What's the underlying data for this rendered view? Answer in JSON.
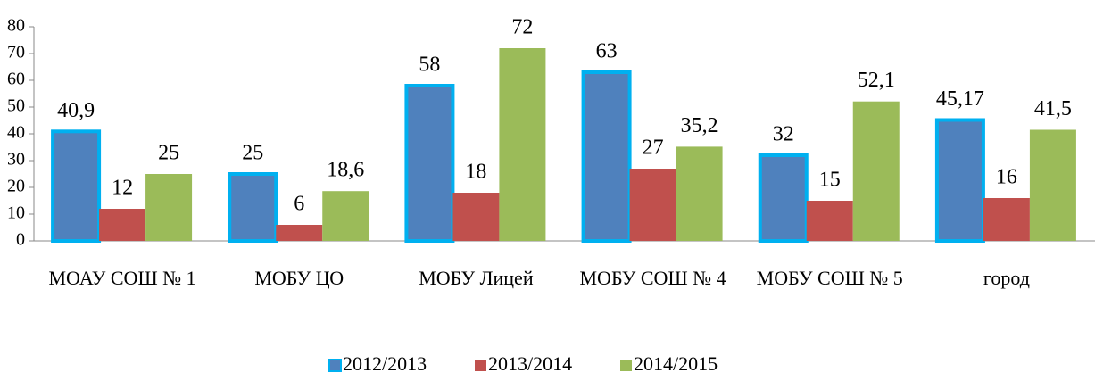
{
  "chart_data": {
    "type": "bar",
    "categories": [
      "МОАУ СОШ № 1",
      "МОБУ ЦО",
      "МОБУ Лицей",
      "МОБУ СОШ № 4",
      "МОБУ СОШ № 5",
      "город"
    ],
    "series": [
      {
        "name": "2012/2013",
        "color": "#4f81bd",
        "outline": "#00b0f0",
        "values": [
          40.9,
          25,
          58,
          63,
          32,
          45.17
        ],
        "value_labels": [
          "40,9",
          "25",
          "58",
          "63",
          "32",
          "45,17"
        ]
      },
      {
        "name": "2013/2014",
        "color": "#c0504d",
        "values": [
          12,
          6,
          18,
          27,
          15,
          16
        ],
        "value_labels": [
          "12",
          "6",
          "18",
          "27",
          "15",
          "16"
        ]
      },
      {
        "name": "2014/2015",
        "color": "#9bbb59",
        "values": [
          25,
          18.6,
          72,
          35.2,
          52.1,
          41.5
        ],
        "value_labels": [
          "25",
          "18,6",
          "72",
          "35,2",
          "52,1",
          "41,5"
        ]
      }
    ],
    "ylim": [
      0,
      80
    ],
    "yticks": [
      0,
      10,
      20,
      30,
      40,
      50,
      60,
      70,
      80
    ],
    "grid": false,
    "legend": "bottom"
  }
}
